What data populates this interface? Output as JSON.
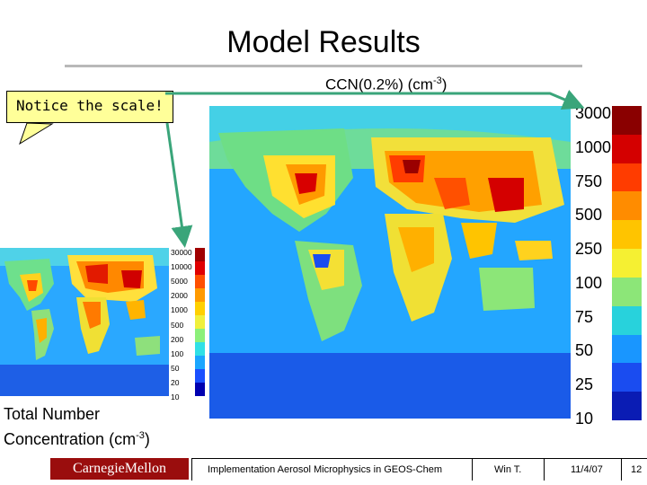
{
  "slide": {
    "title": "Model Results",
    "callout": "Notice the scale!",
    "ccn_label_main": "CCN(0.2%) (cm",
    "ccn_label_exp": "-3",
    "ccn_label_end": ")",
    "total_label_line1": "Total Number",
    "total_label_line2_main": "Concentration (cm",
    "total_label_line2_exp": "-3",
    "total_label_line2_end": ")"
  },
  "small_scale": {
    "ticks": [
      "30000",
      "10000",
      "5000",
      "2000",
      "1000",
      "500",
      "200",
      "100",
      "50",
      "20",
      "10"
    ],
    "colors": [
      "#a00000",
      "#e00000",
      "#ff5000",
      "#ff9a00",
      "#ffd000",
      "#f0f03c",
      "#8cf07a",
      "#2fe0e6",
      "#1aa6ff",
      "#1a50ff",
      "#0000b0"
    ]
  },
  "large_scale": {
    "ticks": [
      "3000",
      "1000",
      "750",
      "500",
      "250",
      "100",
      "75",
      "50",
      "25",
      "10"
    ],
    "colors": [
      "#8a0000",
      "#d40000",
      "#ff3c00",
      "#ff8c00",
      "#ffc400",
      "#f5f032",
      "#8ce678",
      "#28d2dc",
      "#1996ff",
      "#1a4cf0",
      "#0a1cb4"
    ]
  },
  "footer": {
    "logo": "CarnegieMellon",
    "presentation": "Implementation Aerosol Microphysics in GEOS-Chem",
    "author": "Win T.",
    "date": "11/4/07",
    "page": "12"
  }
}
